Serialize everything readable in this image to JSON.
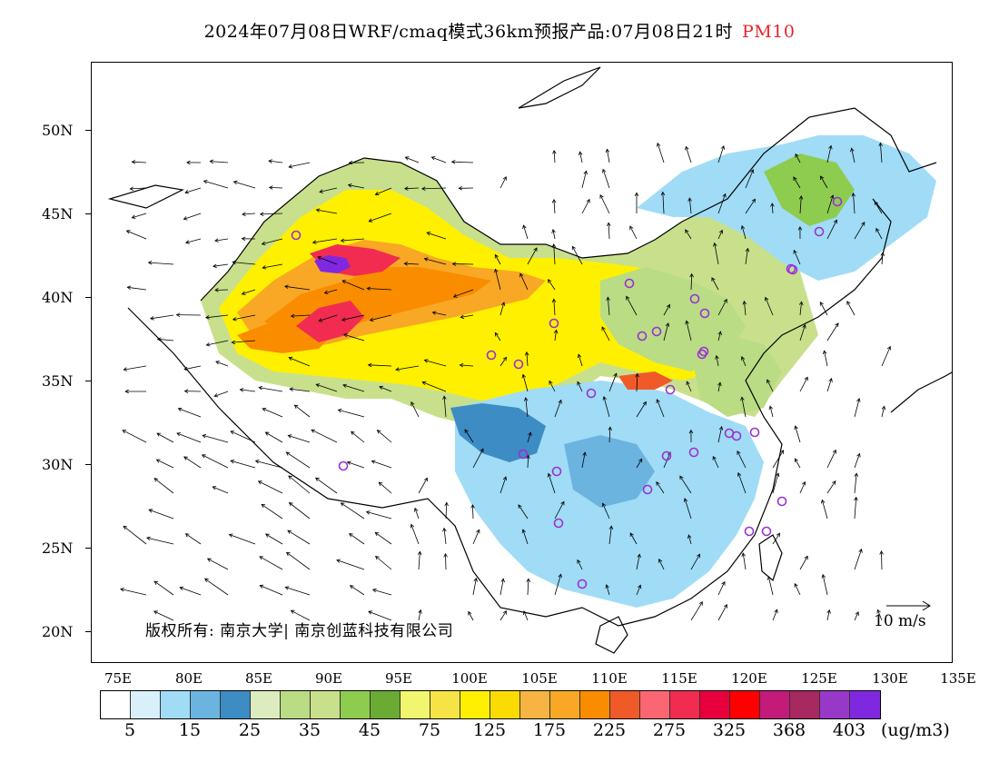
{
  "title": {
    "main": "2024年07月08日WRF/cmaq模式36km预报产品:07月08日21时",
    "variable": "PM10",
    "variable_color": "#e8242a"
  },
  "lat_labels": [
    "50N",
    "45N",
    "40N",
    "35N",
    "30N",
    "25N",
    "20N"
  ],
  "lon_labels": [
    "75E",
    "80E",
    "85E",
    "90E",
    "95E",
    "100E",
    "105E",
    "110E",
    "115E",
    "120E",
    "125E",
    "130E",
    "135E"
  ],
  "colorbar": {
    "colors": [
      "#ffffff",
      "#d9f0fb",
      "#a0dcf6",
      "#6cb4e0",
      "#3d8cc4",
      "#dcecbe",
      "#b9dc84",
      "#c8e08c",
      "#8ecc50",
      "#6aab34",
      "#f2f66e",
      "#f6e446",
      "#fff000",
      "#fcdc00",
      "#f8b442",
      "#f8a824",
      "#fa8c00",
      "#f05a28",
      "#fc6672",
      "#f22b50",
      "#e8003c",
      "#ff0000",
      "#c41a7a",
      "#a82860",
      "#9838c8",
      "#8028e0"
    ],
    "labels": [
      "5",
      "15",
      "25",
      "35",
      "45",
      "75",
      "125",
      "175",
      "225",
      "275",
      "325",
      "368",
      "403"
    ],
    "unit": "(ug/m3)"
  },
  "copyright": "版权所有: 南京大学| 南京创蓝科技有限公司",
  "wind_key": "10 m/s",
  "stations_color": "#9b2fd6"
}
